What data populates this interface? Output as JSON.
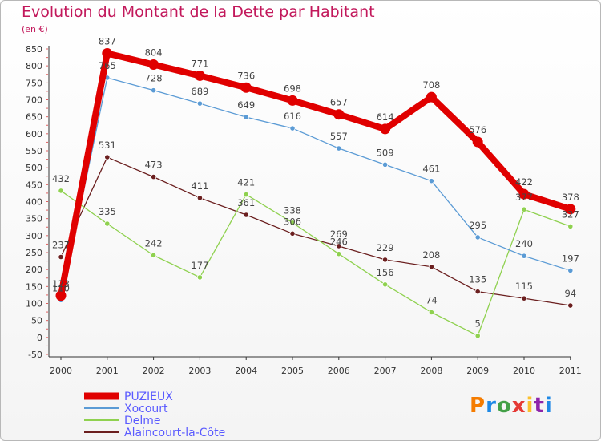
{
  "chart_data": {
    "type": "line",
    "title": "Evolution du Montant de la Dette par Habitant",
    "subtitle": "(en €)",
    "x": [
      "2000",
      "2001",
      "2002",
      "2003",
      "2004",
      "2005",
      "2006",
      "2007",
      "2008",
      "2009",
      "2010",
      "2011"
    ],
    "ylim": [
      -50,
      850
    ],
    "yticks": [
      -50,
      0,
      50,
      100,
      150,
      200,
      250,
      300,
      350,
      400,
      450,
      500,
      550,
      600,
      650,
      700,
      750,
      800,
      850
    ],
    "grid": false,
    "legend_position": "bottom-left",
    "series": [
      {
        "name": "PUZIEUX",
        "color": "#e00000",
        "values": [
          123,
          837,
          804,
          771,
          736,
          698,
          657,
          614,
          708,
          576,
          422,
          378
        ]
      },
      {
        "name": "Xocourt",
        "color": "#5b9bd5",
        "values": [
          110,
          765,
          728,
          689,
          649,
          616,
          557,
          509,
          461,
          295,
          240,
          197
        ]
      },
      {
        "name": "Delme",
        "color": "#8fd14f",
        "values": [
          432,
          335,
          242,
          177,
          421,
          338,
          246,
          156,
          74,
          5,
          377,
          327
        ]
      },
      {
        "name": "Alaincourt-la-Côte",
        "color": "#6b1f1f",
        "values": [
          237,
          531,
          473,
          411,
          361,
          306,
          269,
          229,
          208,
          135,
          115,
          94
        ]
      }
    ],
    "labels": {
      "PUZIEUX": [
        "123",
        "837",
        "804",
        "771",
        "736",
        "698",
        "657",
        "614",
        "708",
        "576",
        "422",
        "378"
      ],
      "Xocourt": [
        "110",
        "765",
        "728",
        "689",
        "649",
        "616",
        "557",
        "509",
        "461",
        "295",
        "240",
        "197"
      ],
      "Delme": [
        "432",
        "335",
        "242",
        "177",
        "421",
        "338",
        "246",
        "156",
        "74",
        "5",
        "377",
        "327"
      ],
      "Alaincourt-la-Côte": [
        "237",
        "531",
        "473",
        "411",
        "361",
        "306",
        "269",
        "229",
        "208",
        "135",
        "115",
        "94"
      ]
    }
  },
  "logo": {
    "text": "Proxiti"
  }
}
